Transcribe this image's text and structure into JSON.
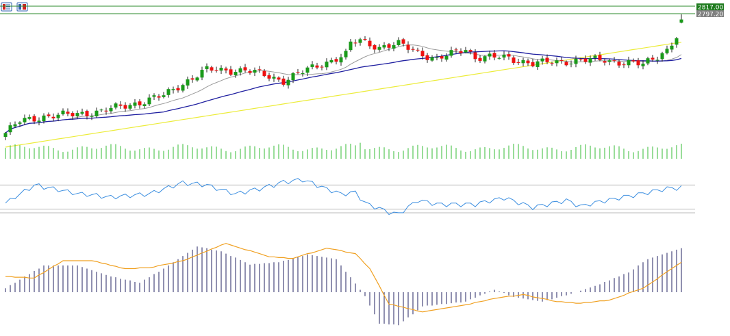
{
  "toolbar": {
    "icons": [
      "chart-list-icon",
      "chart-template-icon"
    ]
  },
  "price_labels": {
    "upper": "2817.00",
    "lower": "2797.20",
    "upper_color": "#1e7b1e",
    "lower_color": "#808080"
  },
  "colors": {
    "bull": "#1a9a1a",
    "bear": "#ee1111",
    "ma_fast": "#9a9a9a",
    "ma_mid": "#1f1fa0",
    "ma_slow": "#ecec3a",
    "volume": "#33bb33",
    "rsi": "#3b8ee0",
    "macd_hist": "#202060",
    "macd_signal": "#f0a020",
    "level_line": "#2a8a2a",
    "guide": "#b8b8b8"
  },
  "chart_data": [
    {
      "type": "candlestick",
      "name": "price",
      "grid": false,
      "price_labels": [
        2817.0,
        2797.2
      ],
      "candles": []
    },
    {
      "type": "bar",
      "name": "volume",
      "values": []
    },
    {
      "type": "line",
      "name": "rsi",
      "levels": [
        70,
        30
      ],
      "ylim": [
        0,
        100
      ],
      "values": []
    },
    {
      "type": "bar",
      "name": "macd",
      "values": [],
      "signal": []
    }
  ]
}
